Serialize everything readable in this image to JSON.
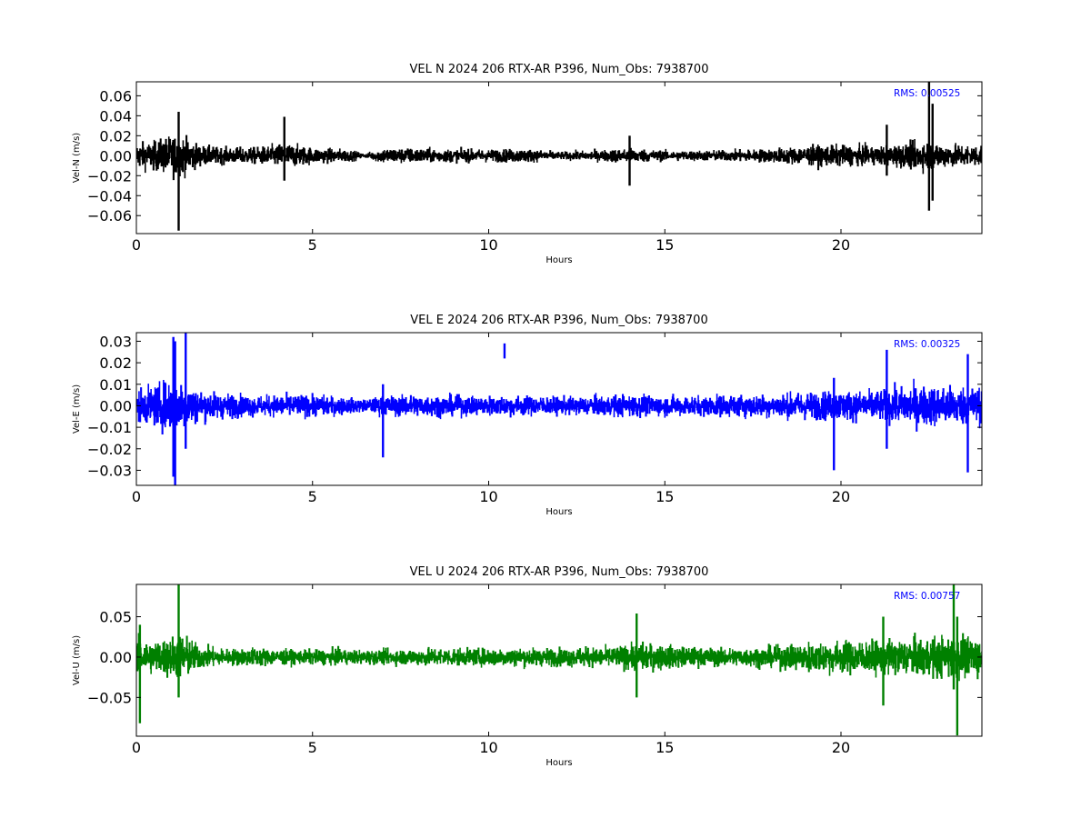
{
  "chart_data": [
    {
      "type": "line",
      "title": "VEL N 2024 206 RTX-AR  P396, Num_Obs: 7938700",
      "xlabel": "Hours",
      "ylabel": "Vel-N (m/s)",
      "xlim": [
        0,
        24
      ],
      "ylim": [
        -0.078,
        0.074
      ],
      "x_ticks": [
        0,
        5,
        10,
        15,
        20
      ],
      "x_tick_labels": [
        "0",
        "5",
        "10",
        "15",
        "20"
      ],
      "y_ticks": [
        0.06,
        0.04,
        0.02,
        0.0,
        -0.02,
        -0.04,
        -0.06
      ],
      "y_tick_labels": [
        "0.06",
        "0.04",
        "0.02",
        "0.00",
        "−0.02",
        "−0.04",
        "−0.06"
      ],
      "grid": false,
      "annotation": "RMS:  0.00525",
      "annotation_color": "#0000ff",
      "series_color": "#000000",
      "envelope": {
        "hours": [
          0,
          0.5,
          1,
          1.3,
          1.8,
          2.5,
          3.5,
          4.2,
          5,
          6,
          6.5,
          7,
          8,
          9,
          10,
          11,
          12,
          13,
          14,
          15,
          16,
          17,
          18,
          19,
          20,
          21,
          22,
          22.5,
          23,
          24
        ],
        "amplitude": [
          0.022,
          0.025,
          0.035,
          0.034,
          0.018,
          0.014,
          0.015,
          0.022,
          0.014,
          0.011,
          0.004,
          0.014,
          0.013,
          0.011,
          0.011,
          0.012,
          0.007,
          0.009,
          0.013,
          0.009,
          0.009,
          0.01,
          0.012,
          0.017,
          0.018,
          0.016,
          0.022,
          0.026,
          0.02,
          0.019
        ]
      },
      "spikes": [
        {
          "x": 1.2,
          "low": -0.075,
          "high": 0.044
        },
        {
          "x": 22.5,
          "low": -0.055,
          "high": 0.074
        },
        {
          "x": 21.3,
          "low": -0.02,
          "high": 0.031
        },
        {
          "x": 22.6,
          "low": -0.045,
          "high": 0.052
        },
        {
          "x": 14.0,
          "low": -0.03,
          "high": 0.02
        },
        {
          "x": 4.2,
          "low": -0.025,
          "high": 0.039
        }
      ]
    },
    {
      "type": "line",
      "title": "VEL E 2024 206 RTX-AR  P396, Num_Obs: 7938700",
      "xlabel": "Hours",
      "ylabel": "Vel-E (m/s)",
      "xlim": [
        0,
        24
      ],
      "ylim": [
        -0.037,
        0.034
      ],
      "x_ticks": [
        0,
        5,
        10,
        15,
        20
      ],
      "x_tick_labels": [
        "0",
        "5",
        "10",
        "15",
        "20"
      ],
      "y_ticks": [
        0.03,
        0.02,
        0.01,
        0.0,
        -0.01,
        -0.02,
        -0.03
      ],
      "y_tick_labels": [
        "0.03",
        "0.02",
        "0.01",
        "0.00",
        "−0.01",
        "−0.02",
        "−0.03"
      ],
      "grid": false,
      "annotation": "RMS:  0.00325",
      "annotation_color": "#0000ff",
      "series_color": "#0000ff",
      "envelope": {
        "hours": [
          0,
          0.5,
          1,
          1.3,
          1.8,
          2.5,
          3.5,
          4.5,
          5.5,
          6.5,
          7,
          8,
          9,
          10,
          11,
          12,
          13,
          14,
          15,
          16,
          17,
          18,
          19,
          20,
          21,
          22,
          23,
          24
        ],
        "amplitude": [
          0.013,
          0.016,
          0.022,
          0.02,
          0.012,
          0.01,
          0.008,
          0.009,
          0.008,
          0.005,
          0.008,
          0.009,
          0.008,
          0.008,
          0.008,
          0.007,
          0.008,
          0.009,
          0.008,
          0.008,
          0.009,
          0.009,
          0.011,
          0.012,
          0.012,
          0.016,
          0.016,
          0.015
        ]
      },
      "spikes": [
        {
          "x": 1.05,
          "low": -0.033,
          "high": 0.032
        },
        {
          "x": 1.4,
          "low": -0.02,
          "high": 0.034
        },
        {
          "x": 1.1,
          "low": -0.037,
          "high": 0.03
        },
        {
          "x": 10.45,
          "low": 0.022,
          "high": 0.029
        },
        {
          "x": 7.0,
          "low": -0.024,
          "high": 0.01
        },
        {
          "x": 19.8,
          "low": -0.03,
          "high": 0.013
        },
        {
          "x": 23.6,
          "low": -0.031,
          "high": 0.024
        },
        {
          "x": 21.3,
          "low": -0.02,
          "high": 0.026
        }
      ]
    },
    {
      "type": "line",
      "title": "VEL U 2024 206 RTX-AR  P396, Num_Obs: 7938700",
      "xlabel": "Hours",
      "ylabel": "Vel-U (m/s)",
      "xlim": [
        0,
        24
      ],
      "ylim": [
        -0.098,
        0.09
      ],
      "x_ticks": [
        0,
        5,
        10,
        15,
        20
      ],
      "x_tick_labels": [
        "0",
        "5",
        "10",
        "15",
        "20"
      ],
      "y_ticks": [
        0.05,
        0.0,
        -0.05
      ],
      "y_tick_labels": [
        "0.05",
        "0.00",
        "−0.05"
      ],
      "grid": false,
      "annotation": "RMS:  0.00757",
      "annotation_color": "#0000ff",
      "series_color": "#008000",
      "envelope": {
        "hours": [
          0,
          0.5,
          1,
          1.3,
          1.8,
          2.5,
          3.5,
          4.5,
          5.5,
          6.5,
          7.5,
          8.5,
          9.5,
          10.5,
          11.5,
          12.5,
          13.5,
          14.3,
          15,
          16,
          17,
          18,
          19,
          20,
          21,
          22,
          23,
          24
        ],
        "amplitude": [
          0.04,
          0.035,
          0.045,
          0.05,
          0.025,
          0.018,
          0.02,
          0.015,
          0.017,
          0.015,
          0.017,
          0.02,
          0.018,
          0.02,
          0.019,
          0.02,
          0.022,
          0.03,
          0.026,
          0.02,
          0.02,
          0.022,
          0.032,
          0.035,
          0.035,
          0.04,
          0.045,
          0.045
        ]
      },
      "spikes": [
        {
          "x": 1.2,
          "low": -0.05,
          "high": 0.09
        },
        {
          "x": 0.1,
          "low": -0.082,
          "high": 0.04
        },
        {
          "x": 23.3,
          "low": -0.097,
          "high": 0.05
        },
        {
          "x": 23.2,
          "low": -0.04,
          "high": 0.09
        },
        {
          "x": 14.2,
          "low": -0.05,
          "high": 0.054
        },
        {
          "x": 21.2,
          "low": -0.06,
          "high": 0.05
        }
      ]
    }
  ]
}
